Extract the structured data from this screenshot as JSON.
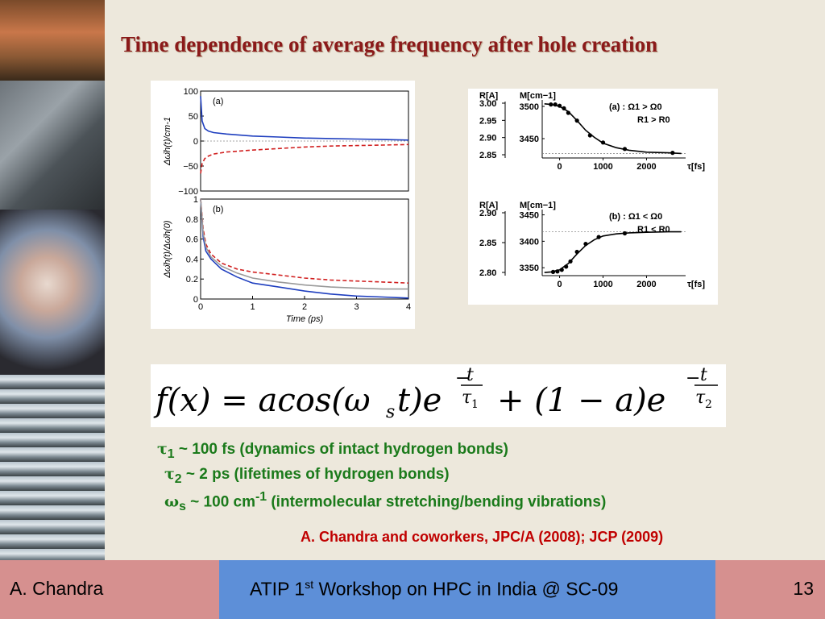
{
  "slide": {
    "title": "Time dependence of average frequency after hole creation",
    "formula": {
      "lhs": "f(x) = acos(ω",
      "sub_s": "s",
      "mid1": "t)e",
      "exp1_num": "t",
      "exp1_den": "τ",
      "exp1_den_sub": "1",
      "mid2": "+ (1 − a)e",
      "exp2_num": "t",
      "exp2_den": "τ",
      "exp2_den_sub": "2"
    },
    "bullets": [
      {
        "sym": "τ",
        "sub": "1",
        "text": " ~ 100 fs (dynamics of intact hydrogen bonds)"
      },
      {
        "sym": "τ",
        "sub": "2",
        "text": " ~ 2 ps (lifetimes of hydrogen bonds)"
      },
      {
        "sym": "ω",
        "sub": "s",
        "text_a": " ~ 100 cm",
        "sup": "-1",
        "text_b": " (intermolecular stretching/bending vibrations)"
      }
    ],
    "reference": "A. Chandra and coworkers, JPC/A (2008); JCP (2009)",
    "footer": {
      "author": "A. Chandra",
      "event_a": "ATIP 1",
      "event_sup": "st",
      "event_b": " Workshop on HPC in India @ SC-09",
      "page": "13"
    }
  },
  "chart_data": [
    {
      "type": "line",
      "panel_label": "(a)",
      "ylabel": "Δω̄h(t)/cm-1",
      "ylim": [
        -100,
        100
      ],
      "yticks": [
        "100",
        "50",
        "0",
        "−50",
        "−100"
      ],
      "xlim": [
        0,
        4
      ],
      "series": [
        {
          "color": "#1f3fbf",
          "style": "solid",
          "x": [
            0,
            0.03,
            0.08,
            0.15,
            0.25,
            0.5,
            1,
            1.5,
            2,
            2.5,
            3,
            3.5,
            4
          ],
          "y": [
            90,
            40,
            25,
            20,
            17,
            14,
            10,
            8,
            6,
            5,
            4,
            3,
            2
          ]
        },
        {
          "color": "#d12020",
          "style": "dashed",
          "x": [
            0,
            0.03,
            0.08,
            0.15,
            0.25,
            0.5,
            1,
            1.5,
            2,
            2.5,
            3,
            3.5,
            4
          ],
          "y": [
            -65,
            -45,
            -35,
            -30,
            -26,
            -22,
            -18,
            -15,
            -12,
            -10,
            -9,
            -8,
            -7
          ]
        }
      ]
    },
    {
      "type": "line",
      "panel_label": "(b)",
      "ylabel": "Δω̄h(t)/Δω̄h(0)",
      "xlabel": "Time (ps)",
      "ylim": [
        0,
        1
      ],
      "yticks": [
        "1",
        "0.8",
        "0.6",
        "0.4",
        "0.2",
        "0"
      ],
      "xticks": [
        "0",
        "1",
        "2",
        "3",
        "4"
      ],
      "xlim": [
        0,
        4
      ],
      "series": [
        {
          "color": "#1f3fbf",
          "style": "solid",
          "x": [
            0,
            0.05,
            0.1,
            0.2,
            0.4,
            0.7,
            1,
            1.5,
            2,
            2.5,
            3,
            3.5,
            4
          ],
          "y": [
            1,
            0.62,
            0.48,
            0.4,
            0.3,
            0.22,
            0.16,
            0.12,
            0.08,
            0.05,
            0.03,
            0.02,
            0.01
          ]
        },
        {
          "color": "#d12020",
          "style": "dashed",
          "x": [
            0,
            0.05,
            0.1,
            0.2,
            0.4,
            0.7,
            1,
            1.5,
            2,
            2.5,
            3,
            3.5,
            4
          ],
          "y": [
            1,
            0.7,
            0.55,
            0.45,
            0.36,
            0.3,
            0.27,
            0.24,
            0.21,
            0.19,
            0.18,
            0.17,
            0.16
          ]
        },
        {
          "color": "#9a9a9a",
          "style": "solid",
          "x": [
            0,
            0.05,
            0.1,
            0.2,
            0.4,
            0.7,
            1,
            1.5,
            2,
            2.5,
            3,
            3.5,
            4
          ],
          "y": [
            1,
            0.66,
            0.52,
            0.42,
            0.33,
            0.26,
            0.21,
            0.17,
            0.14,
            0.12,
            0.11,
            0.1,
            0.1
          ]
        }
      ]
    },
    {
      "type": "scatter",
      "panel_label": "(a) : Ω1 > Ω0",
      "panel_label2": "R1 > R0",
      "left_axis_label": "R[A]",
      "left_ticks": [
        "3.00",
        "2.95",
        "2.90",
        "2.85"
      ],
      "right_axis_label": "M[cm−1]",
      "right_ticks": [
        "3500",
        "3450"
      ],
      "xlabel": "τ[fs]",
      "xticks": [
        "0",
        "1000",
        "2000"
      ],
      "xlim": [
        -400,
        2900
      ],
      "ylim": [
        3420,
        3510
      ],
      "points": {
        "x": [
          -200,
          -100,
          0,
          100,
          200,
          400,
          700,
          1000,
          1500,
          2600
        ],
        "y": [
          3503,
          3503,
          3501,
          3497,
          3490,
          3478,
          3455,
          3444,
          3434,
          3428
        ]
      },
      "fit": {
        "x": [
          -350,
          -200,
          0,
          200,
          400,
          600,
          800,
          1000,
          1300,
          1600,
          2000,
          2500,
          2800
        ],
        "y": [
          3504,
          3503,
          3500,
          3492,
          3478,
          3463,
          3452,
          3443,
          3436,
          3432,
          3429,
          3428,
          3427
        ]
      },
      "baseline": 3427
    },
    {
      "type": "scatter",
      "panel_label": "(b) : Ω1 < Ω0",
      "panel_label2": "R1 < R0",
      "left_axis_label": "R[A]",
      "left_ticks": [
        "2.90",
        "2.85",
        "2.80"
      ],
      "right_axis_label": "M[cm−1]",
      "right_ticks": [
        "3450",
        "3400",
        "3350"
      ],
      "xlabel": "τ[fs]",
      "xticks": [
        "0",
        "1000",
        "2000"
      ],
      "xlim": [
        -400,
        2900
      ],
      "ylim": [
        3335,
        3460
      ],
      "points": {
        "x": [
          -150,
          -50,
          50,
          150,
          250,
          400,
          600,
          900,
          1500
        ],
        "y": [
          3342,
          3343,
          3346,
          3352,
          3362,
          3380,
          3395,
          3408,
          3415
        ]
      },
      "fit": {
        "x": [
          -350,
          -200,
          0,
          200,
          400,
          600,
          800,
          1000,
          1300,
          1600,
          2000,
          2500,
          2800
        ],
        "y": [
          3341,
          3342,
          3346,
          3358,
          3376,
          3392,
          3403,
          3410,
          3414,
          3416,
          3417,
          3418,
          3418
        ]
      },
      "baseline": 3418
    }
  ]
}
